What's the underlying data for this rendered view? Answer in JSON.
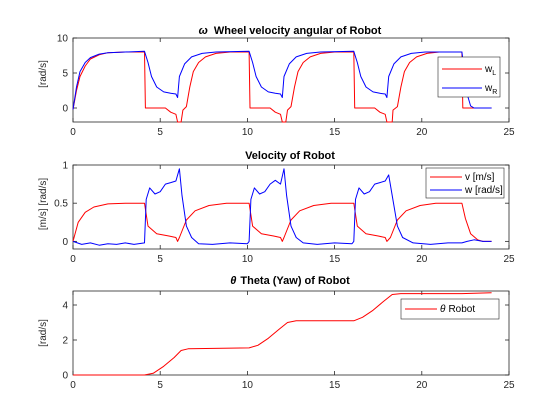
{
  "chart_data": [
    {
      "type": "line",
      "title_symbol": "ω",
      "title": "Wheel velocity angular of Robot",
      "xlabel": "",
      "ylabel": "[rad/s]",
      "xlim": [
        0,
        25
      ],
      "ylim": [
        -2,
        10
      ],
      "xticks": [
        0,
        5,
        10,
        15,
        20,
        25
      ],
      "yticks": [
        0,
        5,
        10
      ],
      "grid": false,
      "legend_position": "top-right",
      "series": [
        {
          "name": "w_L",
          "legend_main": "w",
          "legend_sub": "L",
          "color": "#ff0000",
          "points": [
            [
              0,
              -0.2
            ],
            [
              0.2,
              2.5
            ],
            [
              0.4,
              4.5
            ],
            [
              0.7,
              6.0
            ],
            [
              1.0,
              7.0
            ],
            [
              1.5,
              7.6
            ],
            [
              2.0,
              7.9
            ],
            [
              3.0,
              8.0
            ],
            [
              4.1,
              8.0
            ],
            [
              4.15,
              0.0
            ],
            [
              4.5,
              0.0
            ],
            [
              4.6,
              0.0
            ],
            [
              5.3,
              0.0
            ],
            [
              5.6,
              -0.6
            ],
            [
              5.9,
              -0.9
            ],
            [
              6.0,
              -2.0
            ],
            [
              6.2,
              -2.0
            ],
            [
              6.3,
              -0.3
            ],
            [
              6.5,
              0.2
            ],
            [
              6.7,
              3.0
            ],
            [
              6.9,
              5.2
            ],
            [
              7.2,
              6.5
            ],
            [
              7.6,
              7.3
            ],
            [
              8.2,
              7.8
            ],
            [
              9.0,
              8.0
            ],
            [
              10.1,
              8.0
            ],
            [
              10.15,
              0.0
            ],
            [
              10.6,
              0.0
            ],
            [
              11.3,
              0.0
            ],
            [
              11.6,
              -0.6
            ],
            [
              11.9,
              -0.9
            ],
            [
              12.0,
              -2.0
            ],
            [
              12.2,
              -2.0
            ],
            [
              12.3,
              -0.3
            ],
            [
              12.5,
              0.2
            ],
            [
              12.7,
              3.0
            ],
            [
              12.9,
              5.2
            ],
            [
              13.2,
              6.5
            ],
            [
              13.6,
              7.3
            ],
            [
              14.2,
              7.8
            ],
            [
              15.0,
              8.0
            ],
            [
              16.1,
              8.0
            ],
            [
              16.15,
              0.0
            ],
            [
              16.6,
              0.0
            ],
            [
              17.3,
              0.0
            ],
            [
              17.6,
              -0.6
            ],
            [
              17.9,
              -0.9
            ],
            [
              18.0,
              -2.0
            ],
            [
              18.3,
              -2.0
            ],
            [
              18.35,
              -0.3
            ],
            [
              18.6,
              0.2
            ],
            [
              18.8,
              3.0
            ],
            [
              19.0,
              5.2
            ],
            [
              19.3,
              6.5
            ],
            [
              19.7,
              7.3
            ],
            [
              20.3,
              7.8
            ],
            [
              21.0,
              8.0
            ],
            [
              22.3,
              8.0
            ],
            [
              22.35,
              0.0
            ],
            [
              24.0,
              0.0
            ]
          ]
        },
        {
          "name": "w_R",
          "legend_main": "w",
          "legend_sub": "R",
          "color": "#0000ff",
          "points": [
            [
              0,
              -0.2
            ],
            [
              0.2,
              3.0
            ],
            [
              0.4,
              5.2
            ],
            [
              0.7,
              6.5
            ],
            [
              1.0,
              7.2
            ],
            [
              1.5,
              7.7
            ],
            [
              2.0,
              7.9
            ],
            [
              3.0,
              8.0
            ],
            [
              4.1,
              8.1
            ],
            [
              4.3,
              6.5
            ],
            [
              4.5,
              4.5
            ],
            [
              4.8,
              3.0
            ],
            [
              5.2,
              2.3
            ],
            [
              5.6,
              2.1
            ],
            [
              5.9,
              2.0
            ],
            [
              6.0,
              1.5
            ],
            [
              6.1,
              4.5
            ],
            [
              6.4,
              6.3
            ],
            [
              6.8,
              7.3
            ],
            [
              7.4,
              7.8
            ],
            [
              8.2,
              8.0
            ],
            [
              10.1,
              8.1
            ],
            [
              10.3,
              6.5
            ],
            [
              10.5,
              4.5
            ],
            [
              10.8,
              3.0
            ],
            [
              11.2,
              2.3
            ],
            [
              11.6,
              2.1
            ],
            [
              11.9,
              2.0
            ],
            [
              12.0,
              1.5
            ],
            [
              12.1,
              4.5
            ],
            [
              12.4,
              6.3
            ],
            [
              12.8,
              7.3
            ],
            [
              13.4,
              7.8
            ],
            [
              14.2,
              8.0
            ],
            [
              16.1,
              8.1
            ],
            [
              16.3,
              6.5
            ],
            [
              16.5,
              4.5
            ],
            [
              16.8,
              3.0
            ],
            [
              17.2,
              2.3
            ],
            [
              17.6,
              2.1
            ],
            [
              17.9,
              2.0
            ],
            [
              18.0,
              1.5
            ],
            [
              18.1,
              4.5
            ],
            [
              18.4,
              6.3
            ],
            [
              18.8,
              7.3
            ],
            [
              19.4,
              7.8
            ],
            [
              20.2,
              8.0
            ],
            [
              22.3,
              8.0
            ],
            [
              22.4,
              6.0
            ],
            [
              22.6,
              2.0
            ],
            [
              22.8,
              0.3
            ],
            [
              23.0,
              0.0
            ],
            [
              24.0,
              0.0
            ]
          ]
        }
      ]
    },
    {
      "type": "line",
      "title_symbol": "",
      "title": "Velocity of Robot",
      "xlabel": "",
      "ylabel": "[m/s] [rad/s]",
      "xlim": [
        0,
        25
      ],
      "ylim": [
        -0.1,
        1.0
      ],
      "xticks": [
        0,
        5,
        10,
        15,
        20,
        25
      ],
      "yticks": [
        0,
        0.5,
        1
      ],
      "grid": false,
      "legend_position": "top-right",
      "series": [
        {
          "name": "v [m/s]",
          "color": "#ff0000",
          "points": [
            [
              0,
              0.0
            ],
            [
              0.3,
              0.25
            ],
            [
              0.7,
              0.38
            ],
            [
              1.2,
              0.45
            ],
            [
              2.0,
              0.49
            ],
            [
              3.0,
              0.5
            ],
            [
              4.1,
              0.5
            ],
            [
              4.3,
              0.2
            ],
            [
              4.8,
              0.1
            ],
            [
              5.5,
              0.07
            ],
            [
              5.9,
              0.05
            ],
            [
              6.0,
              0.0
            ],
            [
              6.1,
              0.05
            ],
            [
              6.5,
              0.28
            ],
            [
              7.0,
              0.4
            ],
            [
              7.8,
              0.47
            ],
            [
              8.8,
              0.5
            ],
            [
              10.1,
              0.5
            ],
            [
              10.3,
              0.2
            ],
            [
              10.8,
              0.1
            ],
            [
              11.5,
              0.07
            ],
            [
              11.9,
              0.05
            ],
            [
              12.0,
              0.0
            ],
            [
              12.1,
              0.05
            ],
            [
              12.5,
              0.28
            ],
            [
              13.0,
              0.4
            ],
            [
              13.8,
              0.47
            ],
            [
              14.8,
              0.5
            ],
            [
              16.1,
              0.5
            ],
            [
              16.3,
              0.2
            ],
            [
              16.8,
              0.1
            ],
            [
              17.5,
              0.07
            ],
            [
              17.9,
              0.05
            ],
            [
              18.0,
              0.0
            ],
            [
              18.2,
              0.05
            ],
            [
              18.6,
              0.28
            ],
            [
              19.1,
              0.4
            ],
            [
              19.9,
              0.47
            ],
            [
              20.8,
              0.5
            ],
            [
              22.3,
              0.5
            ],
            [
              22.5,
              0.3
            ],
            [
              22.8,
              0.1
            ],
            [
              23.2,
              0.02
            ],
            [
              23.5,
              0.0
            ],
            [
              24.0,
              0.0
            ]
          ]
        },
        {
          "name": "w [rad/s]",
          "color": "#0000ff",
          "points": [
            [
              0,
              0.0
            ],
            [
              0.5,
              -0.04
            ],
            [
              1.0,
              -0.02
            ],
            [
              1.5,
              -0.05
            ],
            [
              2.0,
              -0.03
            ],
            [
              2.5,
              -0.04
            ],
            [
              3.0,
              -0.02
            ],
            [
              3.5,
              -0.04
            ],
            [
              4.1,
              -0.02
            ],
            [
              4.2,
              0.55
            ],
            [
              4.4,
              0.7
            ],
            [
              4.7,
              0.62
            ],
            [
              5.0,
              0.65
            ],
            [
              5.3,
              0.75
            ],
            [
              5.6,
              0.77
            ],
            [
              5.9,
              0.79
            ],
            [
              6.1,
              0.95
            ],
            [
              6.25,
              0.6
            ],
            [
              6.5,
              0.2
            ],
            [
              6.8,
              0.05
            ],
            [
              7.2,
              -0.03
            ],
            [
              8.0,
              -0.04
            ],
            [
              9.0,
              -0.02
            ],
            [
              10.0,
              -0.03
            ],
            [
              10.1,
              0.0
            ],
            [
              10.2,
              0.55
            ],
            [
              10.4,
              0.7
            ],
            [
              10.7,
              0.62
            ],
            [
              11.0,
              0.65
            ],
            [
              11.3,
              0.75
            ],
            [
              11.6,
              0.8
            ],
            [
              11.9,
              0.75
            ],
            [
              12.1,
              0.95
            ],
            [
              12.25,
              0.6
            ],
            [
              12.5,
              0.2
            ],
            [
              12.8,
              0.05
            ],
            [
              13.2,
              -0.02
            ],
            [
              14.0,
              -0.04
            ],
            [
              15.0,
              -0.02
            ],
            [
              16.0,
              -0.03
            ],
            [
              16.1,
              0.0
            ],
            [
              16.2,
              0.55
            ],
            [
              16.4,
              0.7
            ],
            [
              16.7,
              0.62
            ],
            [
              17.0,
              0.65
            ],
            [
              17.3,
              0.75
            ],
            [
              17.6,
              0.77
            ],
            [
              17.9,
              0.79
            ],
            [
              18.1,
              0.87
            ],
            [
              18.3,
              0.6
            ],
            [
              18.6,
              0.2
            ],
            [
              18.9,
              0.05
            ],
            [
              19.5,
              -0.02
            ],
            [
              20.5,
              -0.04
            ],
            [
              21.5,
              -0.02
            ],
            [
              22.3,
              -0.02
            ],
            [
              22.6,
              0.0
            ],
            [
              23.0,
              0.02
            ],
            [
              23.5,
              0.0
            ],
            [
              24.0,
              0.0
            ]
          ]
        }
      ]
    },
    {
      "type": "line",
      "title_symbol": "θ",
      "title": "Theta (Yaw) of Robot",
      "xlabel": "",
      "ylabel": "[rad/s]",
      "xlim": [
        0,
        25
      ],
      "ylim": [
        0,
        4.8
      ],
      "xticks": [
        0,
        5,
        10,
        15,
        20,
        25
      ],
      "yticks": [
        0,
        2,
        4
      ],
      "grid": false,
      "legend_position": "top-right",
      "series": [
        {
          "name": "θ Robot",
          "legend_symbol": "θ",
          "legend_text": "Robot",
          "color": "#ff0000",
          "points": [
            [
              0,
              0.0
            ],
            [
              4.1,
              0.0
            ],
            [
              4.6,
              0.1
            ],
            [
              5.2,
              0.5
            ],
            [
              5.8,
              1.0
            ],
            [
              6.2,
              1.4
            ],
            [
              6.6,
              1.5
            ],
            [
              10.1,
              1.55
            ],
            [
              10.6,
              1.7
            ],
            [
              11.2,
              2.1
            ],
            [
              11.8,
              2.6
            ],
            [
              12.3,
              3.0
            ],
            [
              12.8,
              3.1
            ],
            [
              16.1,
              3.1
            ],
            [
              16.6,
              3.3
            ],
            [
              17.2,
              3.7
            ],
            [
              17.8,
              4.2
            ],
            [
              18.3,
              4.6
            ],
            [
              18.8,
              4.65
            ],
            [
              22.3,
              4.65
            ],
            [
              24.0,
              4.7
            ]
          ]
        }
      ]
    }
  ]
}
